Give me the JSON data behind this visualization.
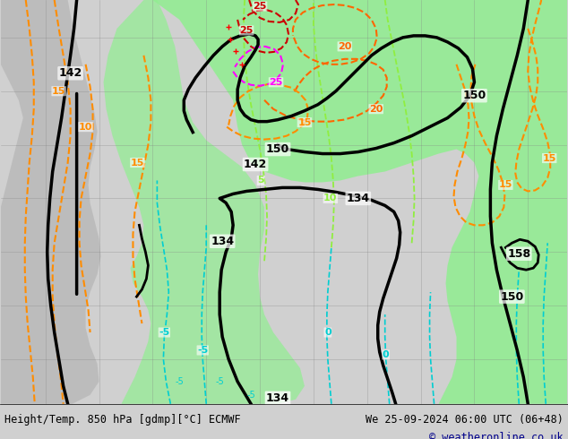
{
  "title_left": "Height/Temp. 850 hPa [gdmp][°C] ECMWF",
  "title_right": "We 25-09-2024 06:00 UTC (06+48)",
  "copyright": "© weatheronline.co.uk",
  "bg_color": "#e8e8e8",
  "land_color": "#c8c8c8",
  "green_color": "#90ee90",
  "figsize": [
    6.34,
    4.9
  ],
  "dpi": 100,
  "bottom_text_color": "#00008B",
  "footer_bg": "#f0f0f0"
}
